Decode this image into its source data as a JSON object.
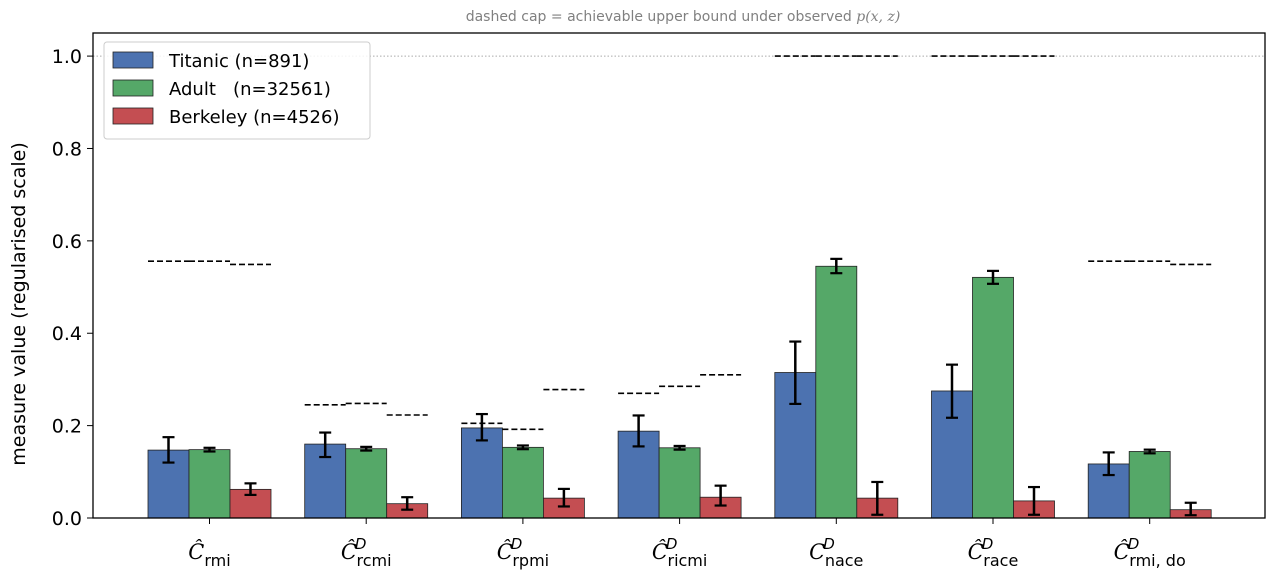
{
  "chart_data": {
    "type": "bar",
    "title": "dashed cap = achievable upper bound under observed p(x, z)",
    "title_parts": {
      "before": "dashed cap = achievable upper bound under observed ",
      "math": "p(x, z)"
    },
    "ylabel": "measure value (regularised scale)",
    "xlabel": "",
    "ylim": [
      0,
      1.05
    ],
    "yticks": [
      "0.0",
      "0.2",
      "0.4",
      "0.6",
      "0.8",
      "1.0"
    ],
    "reference_line": 1.0,
    "legend_position": "top-left",
    "categories": [
      {
        "base": "Ĉ",
        "sup": "",
        "sub": "rmi"
      },
      {
        "base": "Ĉ",
        "sup": "D",
        "sub": "rcmi"
      },
      {
        "base": "Ĉ",
        "sup": "D",
        "sub": "rpmi"
      },
      {
        "base": "Ĉ",
        "sup": "D",
        "sub": "ricmi"
      },
      {
        "base": "C",
        "sup": "D",
        "sub": "nace"
      },
      {
        "base": "Ĉ",
        "sup": "D",
        "sub": "race"
      },
      {
        "base": "Ĉ",
        "sup": "D",
        "sub": "rmi, do"
      }
    ],
    "series": [
      {
        "name": "Titanic (n=891)",
        "color": "#4c72b0",
        "values": [
          0.147,
          0.16,
          0.195,
          0.188,
          0.315,
          0.275,
          0.117
        ],
        "err_low": [
          0.12,
          0.132,
          0.168,
          0.155,
          0.247,
          0.217,
          0.093
        ],
        "err_high": [
          0.175,
          0.185,
          0.225,
          0.222,
          0.382,
          0.332,
          0.142
        ],
        "cap": [
          0.556,
          0.245,
          0.205,
          0.27,
          1.0,
          1.0,
          0.556
        ]
      },
      {
        "name": "Adult   (n=32561)",
        "color": "#55a868",
        "values": [
          0.148,
          0.15,
          0.153,
          0.152,
          0.545,
          0.521,
          0.144
        ],
        "err_low": [
          0.144,
          0.146,
          0.149,
          0.148,
          0.53,
          0.507,
          0.14
        ],
        "err_high": [
          0.152,
          0.154,
          0.157,
          0.156,
          0.561,
          0.535,
          0.148
        ],
        "cap": [
          0.556,
          0.248,
          0.192,
          0.285,
          1.0,
          1.0,
          0.556
        ]
      },
      {
        "name": "Berkeley (n=4526)",
        "color": "#c44e52",
        "values": [
          0.062,
          0.031,
          0.043,
          0.045,
          0.043,
          0.037,
          0.018
        ],
        "err_low": [
          0.05,
          0.018,
          0.025,
          0.027,
          0.007,
          0.007,
          0.006
        ],
        "err_high": [
          0.075,
          0.045,
          0.063,
          0.07,
          0.078,
          0.067,
          0.033
        ],
        "cap": [
          0.549,
          0.223,
          0.278,
          0.31,
          1.0,
          1.0,
          0.549
        ]
      }
    ]
  }
}
